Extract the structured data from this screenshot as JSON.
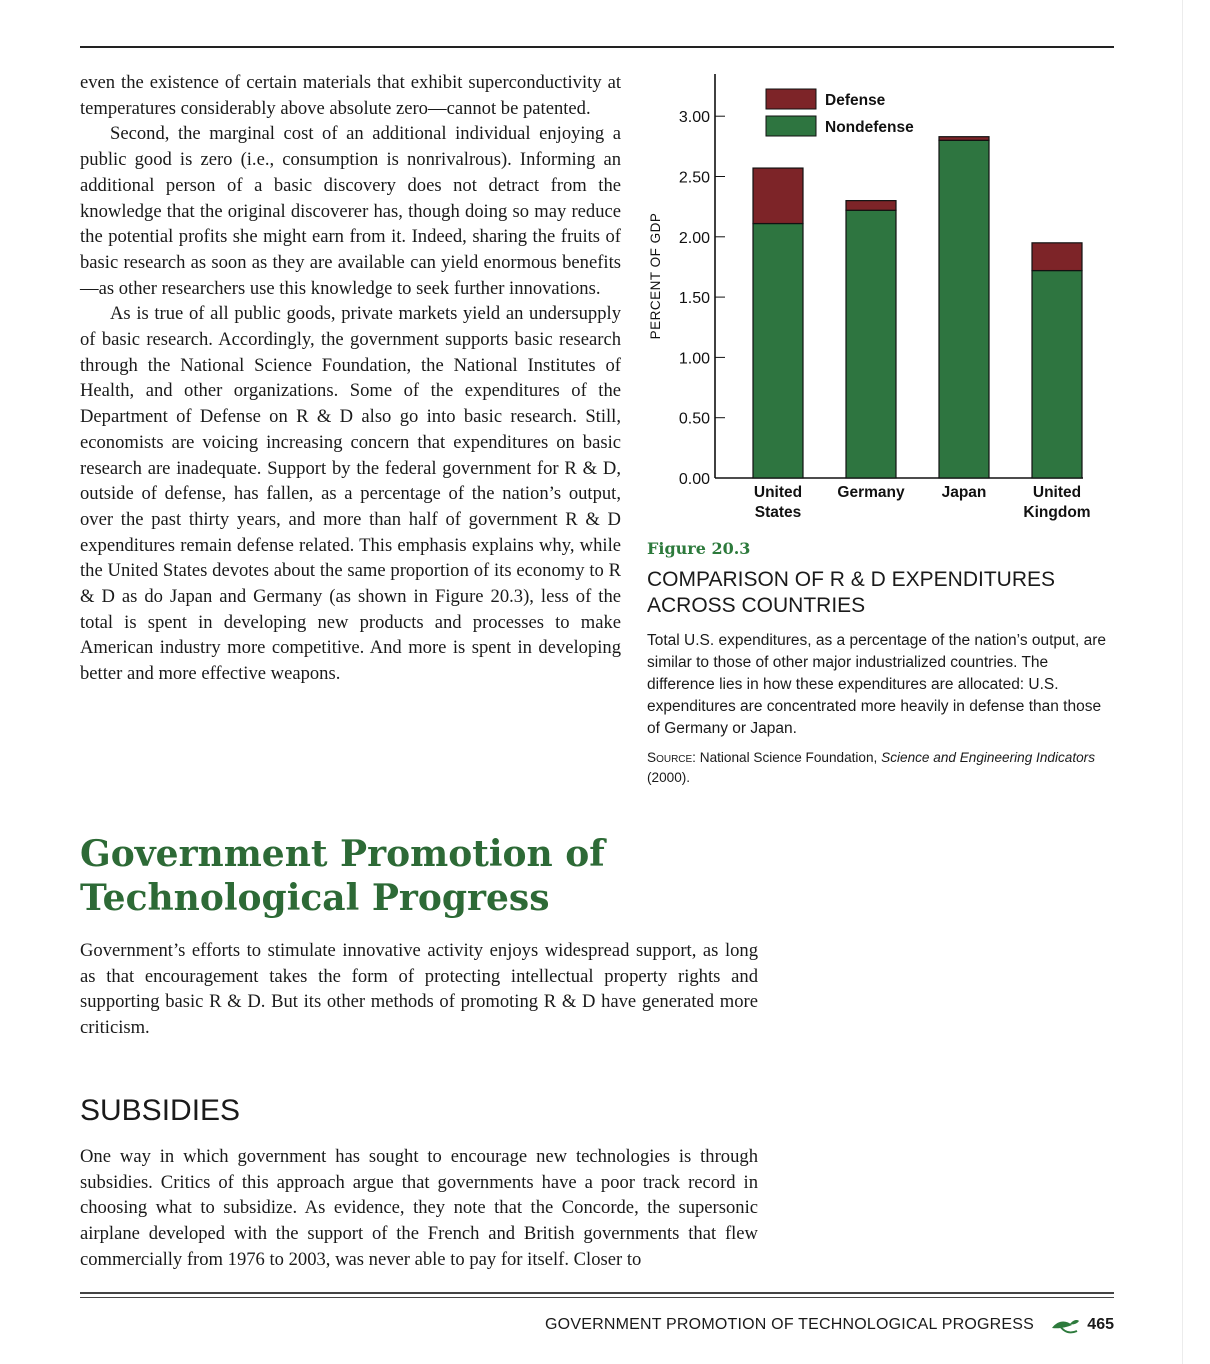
{
  "body_column": {
    "paragraphs": [
      "even the existence of certain materials that exhibit superconductivity at temperatures considerably above absolute zero—cannot be patented.",
      "Second, the marginal cost of an additional individual enjoying a public good is zero (i.e., consumption is nonrivalrous). Informing an additional person of a basic discovery does not detract from the knowledge that the original discoverer has, though doing so may reduce the potential profits she might earn from it. Indeed, sharing the fruits of basic research as soon as they are available can yield enormous benefits—as other researchers use this knowledge to seek further innovations.",
      "As is true of all public goods, private markets yield an undersupply of basic research. Accordingly, the government supports basic research through the National Science Foundation, the National Institutes of Health, and other organizations. Some of the expenditures of the Department of Defense on R & D also go into basic research. Still, economists are voicing increasing concern that expenditures on basic research are inadequate. Support by the federal government for R & D, outside of defense, has fallen, as a percentage of the nation’s output, over the past thirty years, and more than half of government R & D expenditures remain defense related. This emphasis explains why, while the United States devotes about the same proportion of its economy to R & D as do Japan and Germany (as shown in Figure 20.3), less of the total is spent in developing new products and processes to make American industry more competitive. And more is spent in developing better and more effective weapons."
    ]
  },
  "figure": {
    "label": "Figure 20.3",
    "title": "COMPARISON OF R & D EXPENDITURES ACROSS COUNTRIES",
    "caption": "Total U.S. expenditures, as a percentage of the nation’s output, are similar to those of other major industrialized countries. The difference lies in how these expenditures are allocated: U.S. expenditures are concentrated more heavily in defense than those of Germany or Japan.",
    "source_lead": "Source:",
    "source_org": " National Science Foundation, ",
    "source_title": "Science and Engineering Indicators",
    "source_year": " (2000)."
  },
  "chart_data": {
    "type": "bar",
    "stacked": true,
    "categories": [
      [
        "United",
        "States"
      ],
      [
        "Germany"
      ],
      [
        "Japan"
      ],
      [
        "United",
        "Kingdom"
      ]
    ],
    "series": [
      {
        "name": "Nondefense",
        "color": "#2e7540",
        "values": [
          2.11,
          2.22,
          2.8,
          1.72
        ]
      },
      {
        "name": "Defense",
        "color": "#7d2428",
        "values": [
          0.46,
          0.08,
          0.03,
          0.23
        ]
      }
    ],
    "legend_order": [
      "Defense",
      "Nondefense"
    ],
    "ylabel": "PERCENT OF GDP",
    "yticks": [
      "0.00",
      "0.50",
      "1.00",
      "1.50",
      "2.00",
      "2.50",
      "3.00"
    ],
    "ylim": [
      0,
      3.3
    ],
    "legend_position": "top-left",
    "grid": false
  },
  "section": {
    "heading_line1": "Government Promotion of",
    "heading_line2": "Technological Progress",
    "paragraph": "Government’s efforts to stimulate innovative activity enjoys widespread support, as long as that encouragement takes the form of protecting intellectual property rights and supporting basic R & D. But its other methods of promoting R & D have generated more criticism."
  },
  "subsection": {
    "heading": "SUBSIDIES",
    "paragraph": "One way in which government has sought to encourage new technologies is through subsidies. Critics of this approach argue that governments have a poor track record in choosing what to subsidize. As evidence, they note that the Concorde, the supersonic airplane developed with the support of the French and British governments that flew commercially from 1976 to 2003, was never able to pay for itself. Closer to"
  },
  "footer": {
    "running_title": "GOVERNMENT PROMOTION OF TECHNOLOGICAL PROGRESS",
    "page_number": "465",
    "icon": "sprout-icon",
    "accent": "#2d7a3c"
  }
}
